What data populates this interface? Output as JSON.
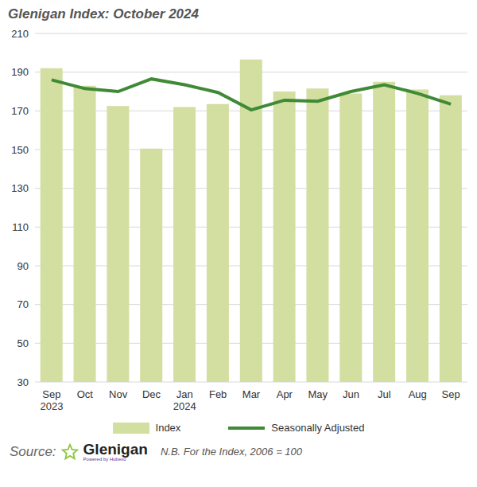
{
  "chart_data": {
    "type": "bar",
    "title": "Glenigan Index: October 2024",
    "categories": [
      "Sep 2023",
      "Oct",
      "Nov",
      "Dec",
      "Jan 2024",
      "Feb",
      "Mar",
      "Apr",
      "May",
      "Jun",
      "Jul",
      "Aug",
      "Sep"
    ],
    "series": [
      {
        "name": "Index",
        "type": "bar",
        "color": "#d3dea1",
        "values": [
          192,
          183,
          172.5,
          150.5,
          172,
          173.5,
          196.5,
          180,
          181.5,
          179,
          185,
          181,
          178
        ]
      },
      {
        "name": "Seasonally Adjusted",
        "type": "line",
        "color": "#3f8a35",
        "values": [
          186,
          181.5,
          180,
          186.5,
          183.5,
          179.5,
          170.5,
          175.5,
          175,
          180,
          183.5,
          179,
          173.5
        ]
      }
    ],
    "ylim": [
      30,
      210
    ],
    "yticks": [
      30,
      50,
      70,
      90,
      110,
      130,
      150,
      170,
      190,
      210
    ],
    "grid": true,
    "legend": "bottom",
    "source_label": "Source:",
    "source": "Glenigan",
    "source_subtitle": "Powered by Hubexo",
    "note": "N.B. For the Index, 2006 = 100"
  }
}
